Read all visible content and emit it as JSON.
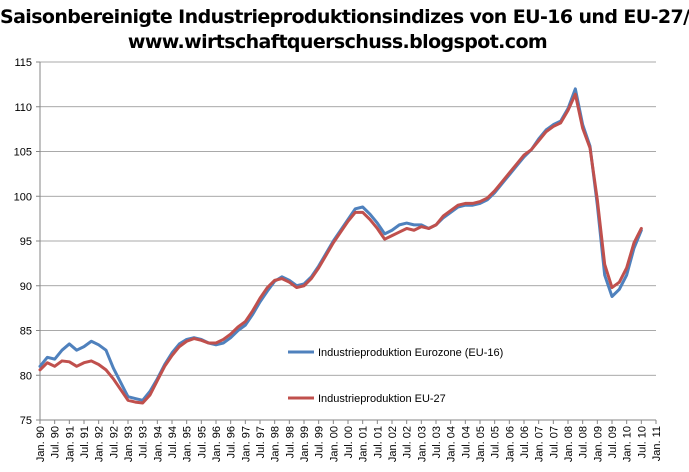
{
  "title": {
    "line1": "Saisonbereinigte Industrieproduktionsindizes von EU-16 und EU-27/",
    "line2": "www.wirtschaftquerschuss.blogspot.com"
  },
  "chart_data": {
    "type": "line",
    "title": "Saisonbereinigte Industrieproduktionsindizes von EU-16 und EU-27/ www.wirtschaftquerschuss.blogspot.com",
    "xlabel": "",
    "ylabel": "",
    "ylim": [
      75,
      115
    ],
    "yticks": [
      75,
      80,
      85,
      90,
      95,
      100,
      105,
      110,
      115
    ],
    "xlim": [
      "Jan. 90",
      "Jan. 11"
    ],
    "xtick_labels": [
      "Jan. 90",
      "Jul. 90",
      "Jan. 91",
      "Jul. 91",
      "Jan. 92",
      "Jul. 92",
      "Jan. 93",
      "Jul. 93",
      "Jan. 94",
      "Jul. 94",
      "Jan. 95",
      "Jul. 95",
      "Jan. 96",
      "Jul. 96",
      "Jan. 97",
      "Jul. 97",
      "Jan. 98",
      "Jul. 98",
      "Jan. 99",
      "Jul. 99",
      "Jan. 00",
      "Jul. 00",
      "Jan. 01",
      "Jul. 01",
      "Jan. 02",
      "Jul. 02",
      "Jan. 03",
      "Jul. 03",
      "Jan. 04",
      "Jul. 04",
      "Jan. 05",
      "Jul. 05",
      "Jan. 06",
      "Jul. 06",
      "Jan. 07",
      "Jul. 07",
      "Jan. 08",
      "Jul. 08",
      "Jan. 09",
      "Jul. 09",
      "Jan. 10",
      "Jul. 10",
      "Jan. 11"
    ],
    "grid": "horizontal",
    "legend_position": "lower-right-inside",
    "series": [
      {
        "name": "Industrieproduktion Eurozone (EU-16)",
        "color": "#4f81bd",
        "points": [
          [
            "Jan. 90",
            81.0
          ],
          [
            "Apr. 90",
            82.0
          ],
          [
            "Jul. 90",
            81.8
          ],
          [
            "Oct. 90",
            82.8
          ],
          [
            "Jan. 91",
            83.5
          ],
          [
            "Apr. 91",
            82.8
          ],
          [
            "Jul. 91",
            83.2
          ],
          [
            "Oct. 91",
            83.8
          ],
          [
            "Jan. 92",
            83.4
          ],
          [
            "Apr. 92",
            82.8
          ],
          [
            "Jul. 92",
            80.8
          ],
          [
            "Oct. 92",
            79.2
          ],
          [
            "Jan. 93",
            77.6
          ],
          [
            "Apr. 93",
            77.4
          ],
          [
            "Jul. 93",
            77.2
          ],
          [
            "Oct. 93",
            78.2
          ],
          [
            "Jan. 94",
            79.6
          ],
          [
            "Apr. 94",
            81.2
          ],
          [
            "Jul. 94",
            82.5
          ],
          [
            "Oct. 94",
            83.5
          ],
          [
            "Jan. 95",
            84.0
          ],
          [
            "Apr. 95",
            84.2
          ],
          [
            "Jul. 95",
            84.0
          ],
          [
            "Oct. 95",
            83.6
          ],
          [
            "Jan. 96",
            83.4
          ],
          [
            "Apr. 96",
            83.6
          ],
          [
            "Jul. 96",
            84.2
          ],
          [
            "Oct. 96",
            85.0
          ],
          [
            "Jan. 97",
            85.6
          ],
          [
            "Apr. 97",
            86.8
          ],
          [
            "Jul. 97",
            88.2
          ],
          [
            "Oct. 97",
            89.4
          ],
          [
            "Jan. 98",
            90.5
          ],
          [
            "Apr. 98",
            91.0
          ],
          [
            "Jul. 98",
            90.6
          ],
          [
            "Oct. 98",
            90.0
          ],
          [
            "Jan. 99",
            90.2
          ],
          [
            "Apr. 99",
            91.0
          ],
          [
            "Jul. 99",
            92.2
          ],
          [
            "Oct. 99",
            93.6
          ],
          [
            "Jan. 00",
            95.0
          ],
          [
            "Apr. 00",
            96.2
          ],
          [
            "Jul. 00",
            97.4
          ],
          [
            "Oct. 00",
            98.6
          ],
          [
            "Jan. 01",
            98.8
          ],
          [
            "Apr. 01",
            98.0
          ],
          [
            "Jul. 01",
            97.0
          ],
          [
            "Oct. 01",
            95.8
          ],
          [
            "Jan. 02",
            96.2
          ],
          [
            "Apr. 02",
            96.8
          ],
          [
            "Jul. 02",
            97.0
          ],
          [
            "Oct. 02",
            96.8
          ],
          [
            "Jan. 03",
            96.8
          ],
          [
            "Apr. 03",
            96.4
          ],
          [
            "Jul. 03",
            96.8
          ],
          [
            "Oct. 03",
            97.6
          ],
          [
            "Jan. 04",
            98.2
          ],
          [
            "Apr. 04",
            98.8
          ],
          [
            "Jul. 04",
            99.0
          ],
          [
            "Oct. 04",
            99.0
          ],
          [
            "Jan. 05",
            99.2
          ],
          [
            "Apr. 05",
            99.6
          ],
          [
            "Jul. 05",
            100.4
          ],
          [
            "Oct. 05",
            101.4
          ],
          [
            "Jan. 06",
            102.4
          ],
          [
            "Apr. 06",
            103.4
          ],
          [
            "Jul. 06",
            104.4
          ],
          [
            "Oct. 06",
            105.2
          ],
          [
            "Jan. 07",
            106.4
          ],
          [
            "Apr. 07",
            107.4
          ],
          [
            "Jul. 07",
            108.0
          ],
          [
            "Oct. 07",
            108.4
          ],
          [
            "Jan. 08",
            109.8
          ],
          [
            "Apr. 08",
            112.0
          ],
          [
            "Jul. 08",
            108.0
          ],
          [
            "Oct. 08",
            105.6
          ],
          [
            "Jan. 09",
            99.0
          ],
          [
            "Apr. 09",
            91.2
          ],
          [
            "Jul. 09",
            88.8
          ],
          [
            "Oct. 09",
            89.6
          ],
          [
            "Jan. 10",
            91.2
          ],
          [
            "Apr. 10",
            94.2
          ],
          [
            "Jul. 10",
            96.2
          ]
        ]
      },
      {
        "name": "Industrieproduktion EU-27",
        "color": "#c0504d",
        "points": [
          [
            "Jan. 90",
            80.6
          ],
          [
            "Apr. 90",
            81.4
          ],
          [
            "Jul. 90",
            81.0
          ],
          [
            "Oct. 90",
            81.6
          ],
          [
            "Jan. 91",
            81.5
          ],
          [
            "Apr. 91",
            81.0
          ],
          [
            "Jul. 91",
            81.4
          ],
          [
            "Oct. 91",
            81.6
          ],
          [
            "Jan. 92",
            81.2
          ],
          [
            "Apr. 92",
            80.6
          ],
          [
            "Jul. 92",
            79.6
          ],
          [
            "Oct. 92",
            78.4
          ],
          [
            "Jan. 93",
            77.2
          ],
          [
            "Apr. 93",
            77.0
          ],
          [
            "Jul. 93",
            76.9
          ],
          [
            "Oct. 93",
            77.8
          ],
          [
            "Jan. 94",
            79.4
          ],
          [
            "Apr. 94",
            81.0
          ],
          [
            "Jul. 94",
            82.2
          ],
          [
            "Oct. 94",
            83.2
          ],
          [
            "Jan. 95",
            83.8
          ],
          [
            "Apr. 95",
            84.1
          ],
          [
            "Jul. 95",
            83.9
          ],
          [
            "Oct. 95",
            83.6
          ],
          [
            "Jan. 96",
            83.6
          ],
          [
            "Apr. 96",
            84.0
          ],
          [
            "Jul. 96",
            84.6
          ],
          [
            "Oct. 96",
            85.4
          ],
          [
            "Jan. 97",
            86.0
          ],
          [
            "Apr. 97",
            87.2
          ],
          [
            "Jul. 97",
            88.6
          ],
          [
            "Oct. 97",
            89.8
          ],
          [
            "Jan. 98",
            90.6
          ],
          [
            "Apr. 98",
            90.8
          ],
          [
            "Jul. 98",
            90.4
          ],
          [
            "Oct. 98",
            89.8
          ],
          [
            "Jan. 99",
            90.0
          ],
          [
            "Apr. 99",
            90.8
          ],
          [
            "Jul. 99",
            92.0
          ],
          [
            "Oct. 99",
            93.4
          ],
          [
            "Jan. 00",
            94.8
          ],
          [
            "Apr. 00",
            96.0
          ],
          [
            "Jul. 00",
            97.2
          ],
          [
            "Oct. 00",
            98.2
          ],
          [
            "Jan. 01",
            98.2
          ],
          [
            "Apr. 01",
            97.4
          ],
          [
            "Jul. 01",
            96.4
          ],
          [
            "Oct. 01",
            95.2
          ],
          [
            "Jan. 02",
            95.6
          ],
          [
            "Apr. 02",
            96.0
          ],
          [
            "Jul. 02",
            96.4
          ],
          [
            "Oct. 02",
            96.2
          ],
          [
            "Jan. 03",
            96.6
          ],
          [
            "Apr. 03",
            96.4
          ],
          [
            "Jul. 03",
            96.8
          ],
          [
            "Oct. 03",
            97.8
          ],
          [
            "Jan. 04",
            98.4
          ],
          [
            "Apr. 04",
            99.0
          ],
          [
            "Jul. 04",
            99.2
          ],
          [
            "Oct. 04",
            99.2
          ],
          [
            "Jan. 05",
            99.4
          ],
          [
            "Apr. 05",
            99.8
          ],
          [
            "Jul. 05",
            100.6
          ],
          [
            "Oct. 05",
            101.6
          ],
          [
            "Jan. 06",
            102.6
          ],
          [
            "Apr. 06",
            103.6
          ],
          [
            "Jul. 06",
            104.6
          ],
          [
            "Oct. 06",
            105.2
          ],
          [
            "Jan. 07",
            106.2
          ],
          [
            "Apr. 07",
            107.2
          ],
          [
            "Jul. 07",
            107.8
          ],
          [
            "Oct. 07",
            108.2
          ],
          [
            "Jan. 08",
            109.6
          ],
          [
            "Apr. 08",
            111.4
          ],
          [
            "Jul. 08",
            107.6
          ],
          [
            "Oct. 08",
            105.4
          ],
          [
            "Jan. 09",
            99.6
          ],
          [
            "Apr. 09",
            92.4
          ],
          [
            "Jul. 09",
            89.8
          ],
          [
            "Oct. 09",
            90.4
          ],
          [
            "Jan. 10",
            92.0
          ],
          [
            "Apr. 10",
            94.8
          ],
          [
            "Jul. 10",
            96.4
          ]
        ]
      }
    ]
  }
}
